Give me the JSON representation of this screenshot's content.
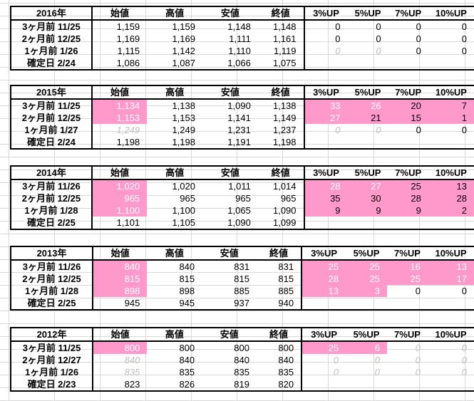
{
  "headers": {
    "start": "始値",
    "high": "高値",
    "low": "安値",
    "close": "終値",
    "up3": "3%UP",
    "up5": "5%UP",
    "up7": "7%UP",
    "up10": "10%UP"
  },
  "blocks": [
    {
      "year": "2016年",
      "rows": [
        {
          "label": "3ヶ月前 11/25",
          "v": [
            "1,159",
            "1,159",
            "1,148",
            "1,148"
          ],
          "u": [
            "0",
            "0",
            "0",
            "0"
          ]
        },
        {
          "label": "2ヶ月前 12/25",
          "v": [
            "1,169",
            "1,169",
            "1,111",
            "1,161"
          ],
          "u": [
            "0",
            "0",
            "0",
            "0"
          ]
        },
        {
          "label": "1ヶ月前 1/26",
          "v": [
            "1,115",
            "1,142",
            "1,110",
            "1,119"
          ],
          "u": [
            "0",
            "0",
            "0",
            "0"
          ]
        },
        {
          "label": "確定日 2/24",
          "v": [
            "1,086",
            "1,087",
            "1,066",
            "1,075"
          ],
          "u": [
            "",
            "",
            "",
            ""
          ]
        }
      ]
    },
    {
      "year": "2015年",
      "rows": [
        {
          "label": "3ヶ月前 11/25",
          "v": [
            "1,134",
            "1,138",
            "1,090",
            "1,138"
          ],
          "u": [
            "33",
            "26",
            "20",
            "7"
          ]
        },
        {
          "label": "2ヶ月前 12/25",
          "v": [
            "1,153",
            "1,153",
            "1,141",
            "1,149"
          ],
          "u": [
            "27",
            "21",
            "15",
            "1"
          ]
        },
        {
          "label": "1ヶ月前 1/27",
          "v": [
            "1,249",
            "1,249",
            "1,231",
            "1,237"
          ],
          "u": [
            "0",
            "0",
            "0",
            "0"
          ]
        },
        {
          "label": "確定日 2/24",
          "v": [
            "1,198",
            "1,198",
            "1,191",
            "1,198"
          ],
          "u": [
            "",
            "",
            "",
            ""
          ]
        }
      ]
    },
    {
      "year": "2014年",
      "rows": [
        {
          "label": "3ヶ月前 11/26",
          "v": [
            "1,020",
            "1,020",
            "1,011",
            "1,014"
          ],
          "u": [
            "28",
            "27",
            "25",
            "13"
          ]
        },
        {
          "label": "2ヶ月前 12/25",
          "v": [
            "965",
            "965",
            "965",
            "965"
          ],
          "u": [
            "35",
            "30",
            "28",
            "28"
          ]
        },
        {
          "label": "1ヶ月前 1/28",
          "v": [
            "1,100",
            "1,100",
            "1,065",
            "1,090"
          ],
          "u": [
            "9",
            "9",
            "9",
            "2"
          ]
        },
        {
          "label": "確定日 2/25",
          "v": [
            "1,101",
            "1,105",
            "1,090",
            "1,099"
          ],
          "u": [
            "",
            "",
            "",
            ""
          ]
        }
      ]
    },
    {
      "year": "2013年",
      "rows": [
        {
          "label": "3ヶ月前 11/26",
          "v": [
            "840",
            "840",
            "831",
            "831"
          ],
          "u": [
            "25",
            "25",
            "16",
            "13"
          ]
        },
        {
          "label": "2ヶ月前 12/25",
          "v": [
            "815",
            "815",
            "815",
            "815"
          ],
          "u": [
            "28",
            "25",
            "25",
            "17"
          ]
        },
        {
          "label": "1ヶ月前 1/28",
          "v": [
            "898",
            "898",
            "885",
            "885"
          ],
          "u": [
            "13",
            "3",
            "0",
            "0"
          ]
        },
        {
          "label": "確定日 2/25",
          "v": [
            "945",
            "945",
            "937",
            "940"
          ],
          "u": [
            "",
            "",
            "",
            ""
          ]
        }
      ]
    },
    {
      "year": "2012年",
      "rows": [
        {
          "label": "3ヶ月前 11/25",
          "v": [
            "800",
            "800",
            "800",
            "800"
          ],
          "u": [
            "25",
            "6",
            "0",
            "0"
          ]
        },
        {
          "label": "2ヶ月前 12/27",
          "v": [
            "840",
            "840",
            "840",
            "840"
          ],
          "u": [
            "0",
            "0",
            "0",
            "0"
          ]
        },
        {
          "label": "1ヶ月前 1/26",
          "v": [
            "835",
            "835",
            "835",
            "835"
          ],
          "u": [
            "0",
            "0",
            "0",
            "0"
          ]
        },
        {
          "label": "確定日 2/23",
          "v": [
            "823",
            "826",
            "819",
            "820"
          ],
          "u": [
            "",
            "",
            "",
            ""
          ]
        }
      ]
    }
  ],
  "styles": {
    "pink_bg": "#ff99cc",
    "start_cells": [
      [],
      [
        0,
        1
      ],
      [
        0,
        1,
        2
      ],
      [
        0,
        1,
        2
      ],
      [
        0
      ]
    ],
    "ghost_start": [
      [],
      [
        2
      ],
      [],
      [],
      [
        1,
        2
      ]
    ],
    "up_pink": [
      [
        [],
        [],
        [],
        []
      ],
      [
        [
          0,
          1,
          2,
          3
        ],
        [
          0,
          1,
          2,
          3
        ],
        [],
        []
      ],
      [
        [
          0,
          1,
          2,
          3
        ],
        [
          0,
          1,
          2,
          3
        ],
        [
          0,
          1,
          2,
          3
        ],
        []
      ],
      [
        [
          0,
          1,
          2,
          3
        ],
        [
          0,
          1,
          2,
          3
        ],
        [
          0,
          1
        ],
        []
      ],
      [
        [
          0,
          1
        ],
        [],
        [],
        []
      ]
    ],
    "up_white_text": [
      [
        [],
        [],
        [],
        []
      ],
      [
        [
          0,
          1
        ],
        [
          0
        ],
        [],
        []
      ],
      [
        [
          0,
          1
        ],
        [],
        [],
        []
      ],
      [
        [
          0,
          1,
          2,
          3
        ],
        [
          0,
          1,
          2,
          3
        ],
        [
          0,
          1
        ],
        []
      ],
      [
        [
          0,
          1
        ],
        [],
        [],
        []
      ]
    ],
    "up_ghost": [
      [
        [],
        [],
        [],
        []
      ],
      [
        [],
        [],
        [
          0,
          1
        ],
        []
      ],
      [
        [],
        [],
        [],
        []
      ],
      [
        [],
        [],
        [],
        []
      ],
      [
        [
          2,
          3
        ],
        [
          0,
          1,
          2,
          3
        ],
        [
          0,
          1,
          2,
          3
        ],
        []
      ]
    ],
    "up_ghost_2016": [
      [],
      [],
      [
        0,
        1
      ],
      []
    ]
  }
}
